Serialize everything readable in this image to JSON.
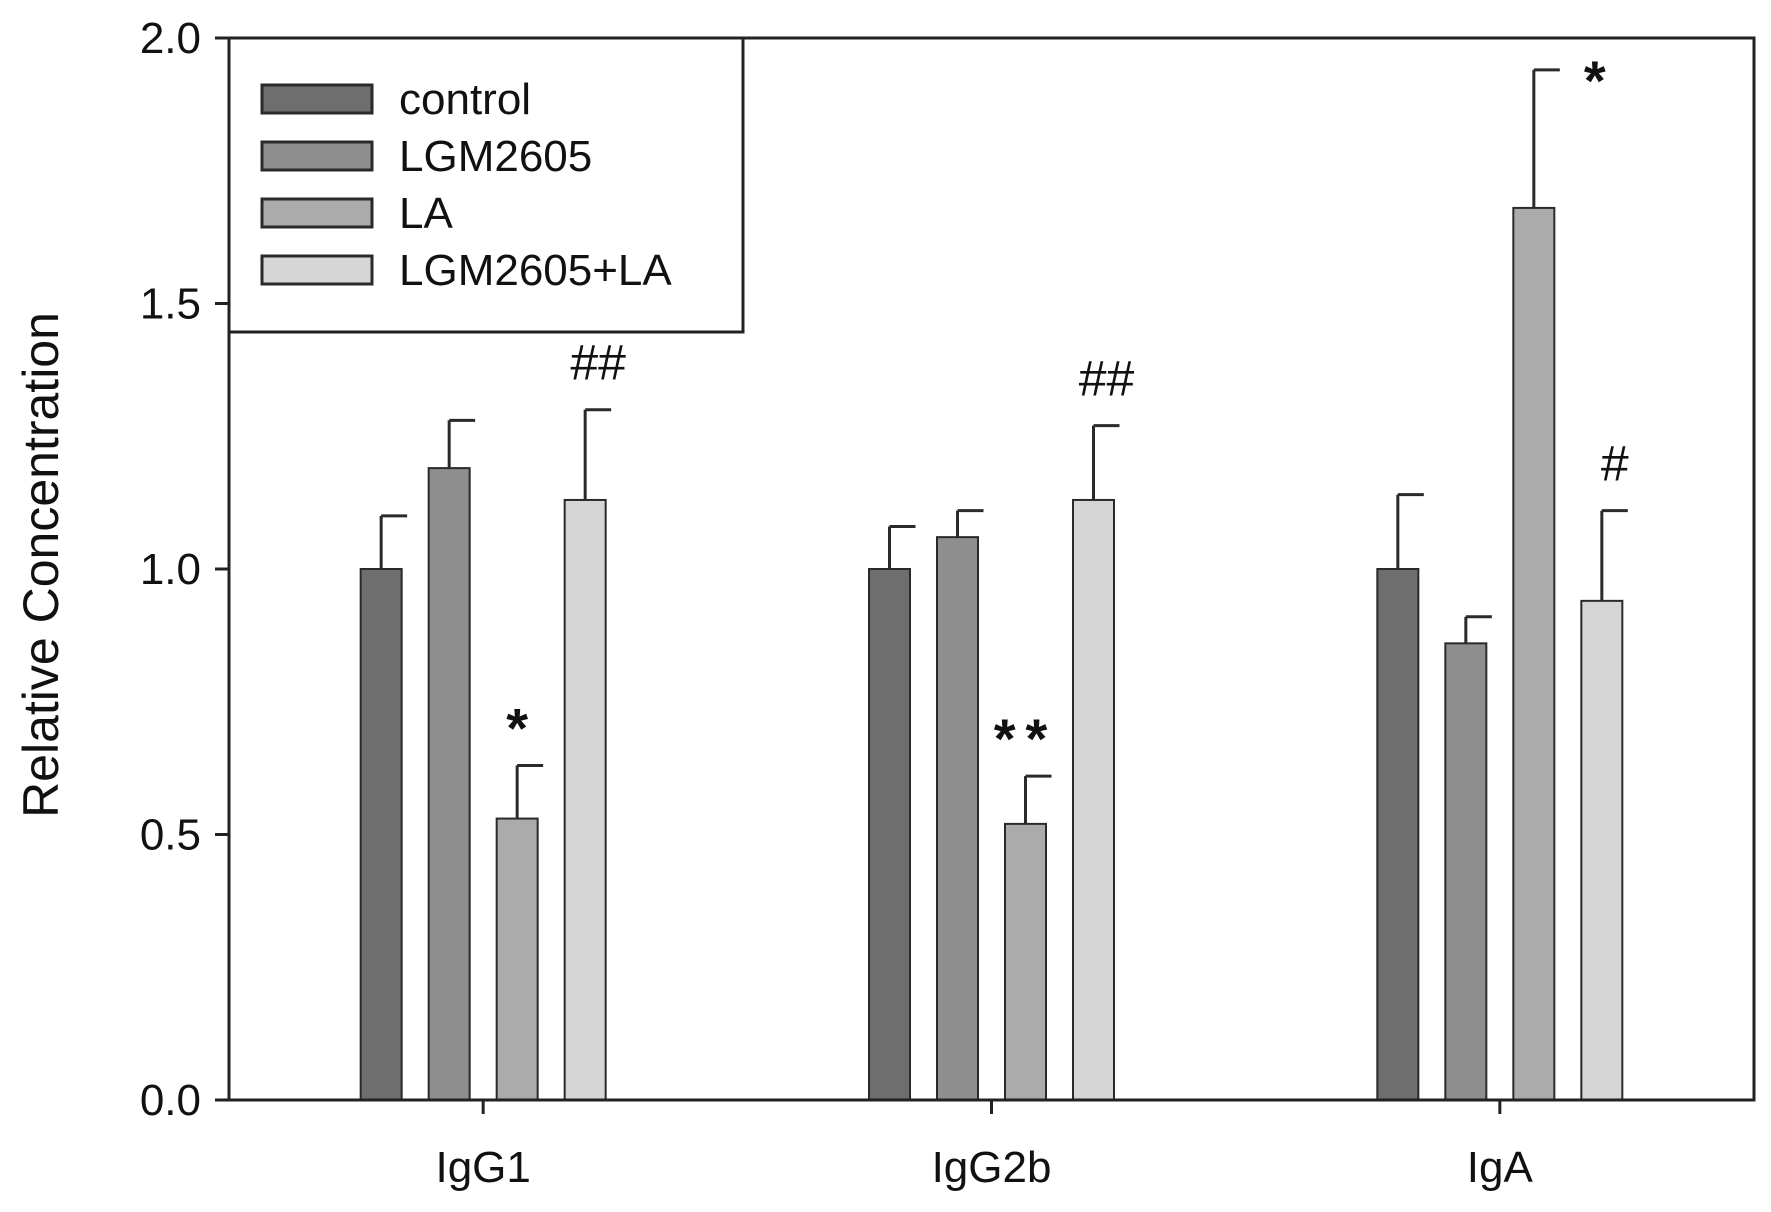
{
  "chart_data": {
    "type": "bar",
    "title": "",
    "xlabel": "",
    "ylabel": "Relative Concentration",
    "ylim": [
      0,
      2.0
    ],
    "yticks": [
      0.0,
      0.5,
      1.0,
      1.5,
      2.0
    ],
    "ytick_labels": [
      "0.0",
      "0.5",
      "1.0",
      "1.5",
      "2.0"
    ],
    "categories": [
      "IgG1",
      "IgG2b",
      "IgA"
    ],
    "legend_position": "top-left",
    "grid": false,
    "series": [
      {
        "name": "control",
        "color": "#6e6e6e",
        "values": [
          1.0,
          1.0,
          1.0
        ],
        "errors": [
          0.1,
          0.08,
          0.14
        ],
        "annotations": [
          "",
          "",
          ""
        ]
      },
      {
        "name": "LGM2605",
        "color": "#8e8e8e",
        "values": [
          1.19,
          1.06,
          0.86
        ],
        "errors": [
          0.09,
          0.05,
          0.05
        ],
        "annotations": [
          "",
          "",
          ""
        ]
      },
      {
        "name": "LA",
        "color": "#ababab",
        "values": [
          0.53,
          0.52,
          1.68
        ],
        "errors": [
          0.1,
          0.09,
          0.26
        ],
        "annotations": [
          "*",
          "**",
          "*"
        ]
      },
      {
        "name": "LGM2605+LA",
        "color": "#d6d6d6",
        "values": [
          1.13,
          1.13,
          0.94
        ],
        "errors": [
          0.17,
          0.14,
          0.17
        ],
        "annotations": [
          "##",
          "##",
          "#"
        ]
      }
    ]
  }
}
